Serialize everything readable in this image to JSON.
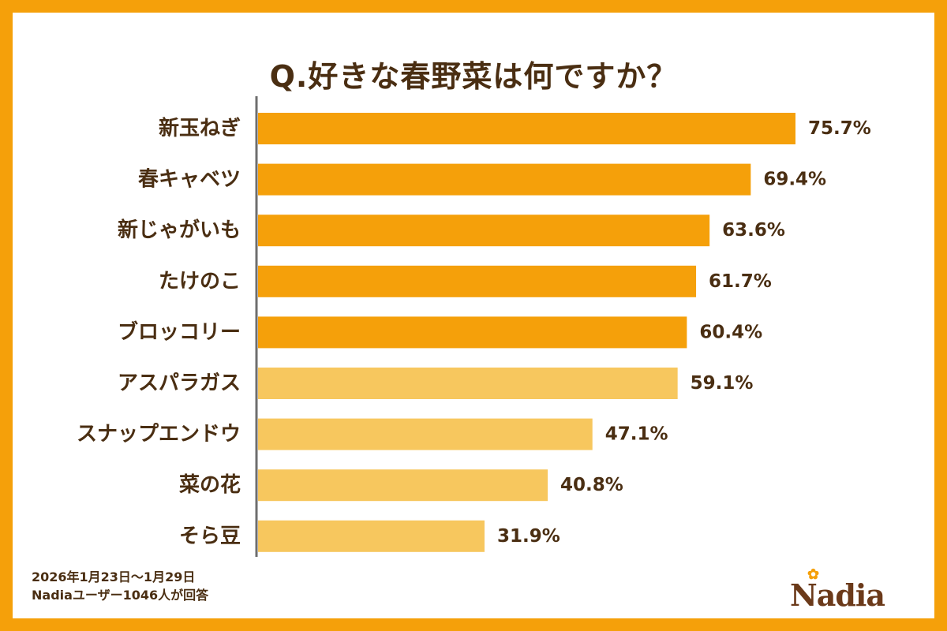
{
  "title": "Q.好きな春野菜は何ですか？",
  "chart_data": {
    "type": "bar",
    "orientation": "horizontal",
    "categories": [
      "新玉ねぎ",
      "春キャベツ",
      "新じゃがいも",
      "たけのこ",
      "ブロッコリー",
      "アスパラガス",
      "スナップエンドウ",
      "菜の花",
      "そら豆"
    ],
    "values": [
      75.7,
      69.4,
      63.6,
      61.7,
      60.4,
      59.1,
      47.1,
      40.8,
      31.9
    ],
    "value_labels": [
      "75.7%",
      "69.4%",
      "63.6%",
      "61.7%",
      "60.4%",
      "59.1%",
      "47.1%",
      "40.8%",
      "31.9%"
    ],
    "highlight_top_n": 5,
    "colors": {
      "highlight": "#F5A00A",
      "normal": "#F7C75E",
      "axis": "#6E6E6E",
      "text": "#4A2E12"
    },
    "xlim": [
      0,
      100
    ],
    "grid": false
  },
  "footnote": {
    "period": "2026年1月23日～1月29日",
    "respondents": "Nadiaユーザー1046人が回答"
  },
  "logo": {
    "text": "Nadia",
    "icon": "flower-icon"
  }
}
